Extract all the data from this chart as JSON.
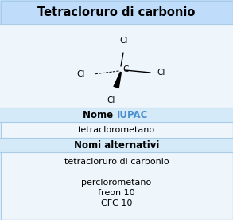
{
  "title": "Tetracloruro di carbonio",
  "title_bg": "#bfddfa",
  "title_color": "#000000",
  "title_fontsize": 10.5,
  "section_bg": "#d4eaf9",
  "body_bg": "#eef5fb",
  "iupac_label": "Nome ",
  "iupac_highlight": "IUPAC",
  "iupac_highlight_color": "#4a8fcc",
  "iupac_value": "tetraclorometano",
  "alt_label": "Nomi alternativi",
  "alt_values": [
    "tetracloruro di carbonio",
    "",
    "perclorometano",
    "freon 10",
    "CFC 10"
  ],
  "section_fontsize": 8.5,
  "value_fontsize": 8.0,
  "border_color": "#a8cce8"
}
